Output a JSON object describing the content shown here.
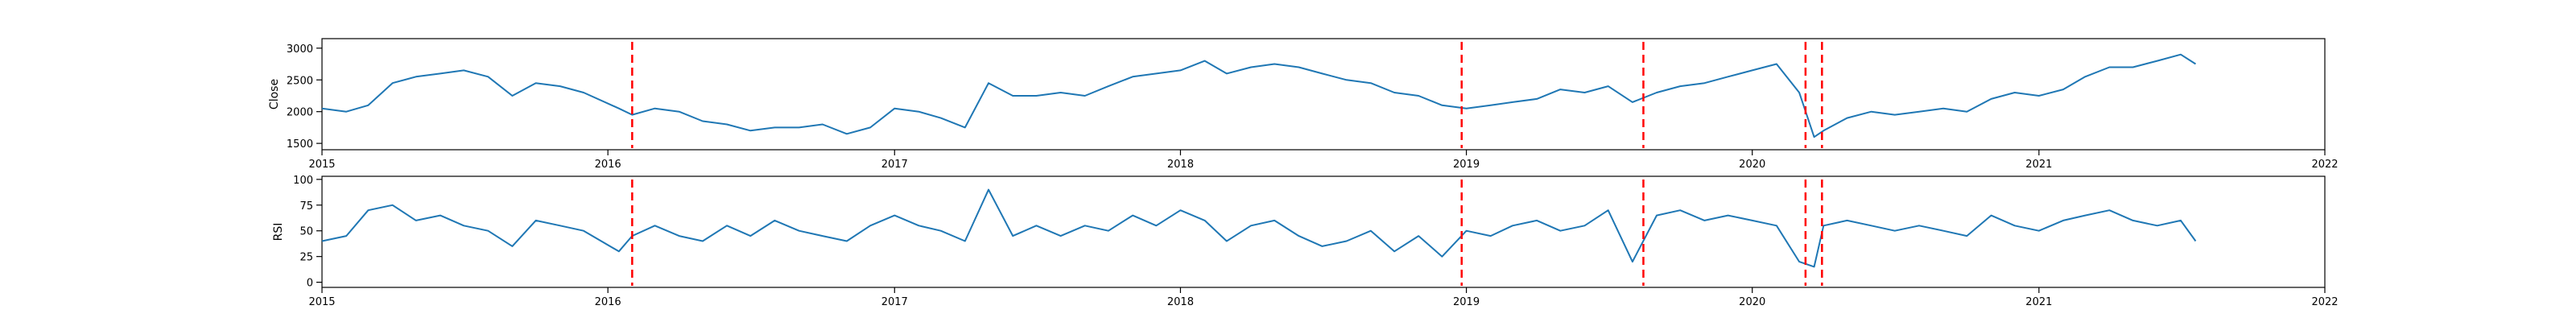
{
  "chart_data": [
    {
      "type": "line",
      "ylabel": "Close",
      "xticks": [
        "2015",
        "2016",
        "2017",
        "2018",
        "2019",
        "2020",
        "2021",
        "2022"
      ],
      "yticks": [
        1500,
        2000,
        2500,
        3000
      ],
      "xlim": [
        "2015-01-01",
        "2022-01-01"
      ],
      "ylim": [
        1400,
        3150
      ],
      "grid": false,
      "series_color": "#1f77b4",
      "series": [
        {
          "x": [
            "2015-01-01",
            "2015-02-01",
            "2015-03-01",
            "2015-04-01",
            "2015-05-01",
            "2015-06-01",
            "2015-07-01",
            "2015-08-01",
            "2015-09-01",
            "2015-10-01",
            "2015-11-01",
            "2015-12-01",
            "2016-01-15",
            "2016-02-01",
            "2016-03-01",
            "2016-04-01",
            "2016-05-01",
            "2016-06-01",
            "2016-07-01",
            "2016-08-01",
            "2016-09-01",
            "2016-10-01",
            "2016-11-01",
            "2016-12-01",
            "2017-01-01",
            "2017-02-01",
            "2017-03-01",
            "2017-04-01",
            "2017-05-01",
            "2017-06-01",
            "2017-07-01",
            "2017-08-01",
            "2017-09-01",
            "2017-10-01",
            "2017-11-01",
            "2017-12-01",
            "2018-01-01",
            "2018-02-01",
            "2018-03-01",
            "2018-04-01",
            "2018-05-01",
            "2018-06-01",
            "2018-07-01",
            "2018-08-01",
            "2018-09-01",
            "2018-10-01",
            "2018-11-01",
            "2018-12-01",
            "2019-01-01",
            "2019-02-01",
            "2019-03-01",
            "2019-04-01",
            "2019-05-01",
            "2019-06-01",
            "2019-07-01",
            "2019-08-01",
            "2019-09-01",
            "2019-10-01",
            "2019-11-01",
            "2019-12-01",
            "2020-01-01",
            "2020-02-01",
            "2020-03-01",
            "2020-03-20",
            "2020-04-01",
            "2020-05-01",
            "2020-06-01",
            "2020-07-01",
            "2020-08-01",
            "2020-09-01",
            "2020-10-01",
            "2020-11-01",
            "2020-12-01",
            "2021-01-01",
            "2021-02-01",
            "2021-03-01",
            "2021-04-01",
            "2021-05-01",
            "2021-06-01",
            "2021-07-01",
            "2021-07-20"
          ],
          "y": [
            2050,
            2000,
            2100,
            2450,
            2550,
            2600,
            2650,
            2550,
            2250,
            2450,
            2400,
            2300,
            2050,
            1950,
            2050,
            2000,
            1850,
            1800,
            1700,
            1750,
            1750,
            1800,
            1650,
            1750,
            2050,
            2000,
            1900,
            1750,
            2450,
            2250,
            2250,
            2300,
            2250,
            2400,
            2550,
            2600,
            2650,
            2800,
            2600,
            2700,
            2750,
            2700,
            2600,
            2500,
            2450,
            2300,
            2250,
            2100,
            2050,
            2100,
            2150,
            2200,
            2350,
            2300,
            2400,
            2150,
            2300,
            2400,
            2450,
            2550,
            2650,
            2750,
            2300,
            1600,
            1700,
            1900,
            2000,
            1950,
            2000,
            2050,
            2000,
            2200,
            2300,
            2250,
            2350,
            2550,
            2700,
            2700,
            2800,
            2900,
            2750
          ]
        }
      ],
      "vlines": [
        "2016-02-01",
        "2018-12-26",
        "2019-08-15",
        "2020-03-09",
        "2020-03-30"
      ],
      "vline_color": "#ff0000"
    },
    {
      "type": "line",
      "ylabel": "RSI",
      "xticks": [
        "2015",
        "2016",
        "2017",
        "2018",
        "2019",
        "2020",
        "2021",
        "2022"
      ],
      "yticks": [
        0,
        25,
        50,
        75,
        100
      ],
      "xlim": [
        "2015-01-01",
        "2022-01-01"
      ],
      "ylim": [
        -5,
        103
      ],
      "grid": false,
      "series_color": "#1f77b4",
      "series": [
        {
          "x": [
            "2015-01-01",
            "2015-02-01",
            "2015-03-01",
            "2015-04-01",
            "2015-05-01",
            "2015-06-01",
            "2015-07-01",
            "2015-08-01",
            "2015-09-01",
            "2015-10-01",
            "2015-11-01",
            "2015-12-01",
            "2016-01-15",
            "2016-02-01",
            "2016-03-01",
            "2016-04-01",
            "2016-05-01",
            "2016-06-01",
            "2016-07-01",
            "2016-08-01",
            "2016-09-01",
            "2016-10-01",
            "2016-11-01",
            "2016-12-01",
            "2017-01-01",
            "2017-02-01",
            "2017-03-01",
            "2017-04-01",
            "2017-05-01",
            "2017-06-01",
            "2017-07-01",
            "2017-08-01",
            "2017-09-01",
            "2017-10-01",
            "2017-11-01",
            "2017-12-01",
            "2018-01-01",
            "2018-02-01",
            "2018-03-01",
            "2018-04-01",
            "2018-05-01",
            "2018-06-01",
            "2018-07-01",
            "2018-08-01",
            "2018-09-01",
            "2018-10-01",
            "2018-11-01",
            "2018-12-01",
            "2019-01-01",
            "2019-02-01",
            "2019-03-01",
            "2019-04-01",
            "2019-05-01",
            "2019-06-01",
            "2019-07-01",
            "2019-08-01",
            "2019-09-01",
            "2019-10-01",
            "2019-11-01",
            "2019-12-01",
            "2020-01-01",
            "2020-02-01",
            "2020-03-01",
            "2020-03-20",
            "2020-04-01",
            "2020-05-01",
            "2020-06-01",
            "2020-07-01",
            "2020-08-01",
            "2020-09-01",
            "2020-10-01",
            "2020-11-01",
            "2020-12-01",
            "2021-01-01",
            "2021-02-01",
            "2021-03-01",
            "2021-04-01",
            "2021-05-01",
            "2021-06-01",
            "2021-07-01",
            "2021-07-20"
          ],
          "y": [
            40,
            45,
            70,
            75,
            60,
            65,
            55,
            50,
            35,
            60,
            55,
            50,
            30,
            45,
            55,
            45,
            40,
            55,
            45,
            60,
            50,
            45,
            40,
            55,
            65,
            55,
            50,
            40,
            90,
            45,
            55,
            45,
            55,
            50,
            65,
            55,
            70,
            60,
            40,
            55,
            60,
            45,
            35,
            40,
            50,
            30,
            45,
            25,
            50,
            45,
            55,
            60,
            50,
            55,
            70,
            20,
            65,
            70,
            60,
            65,
            60,
            55,
            20,
            15,
            55,
            60,
            55,
            50,
            55,
            50,
            45,
            65,
            55,
            50,
            60,
            65,
            70,
            60,
            55,
            60,
            40
          ]
        }
      ],
      "vlines": [
        "2016-02-01",
        "2018-12-26",
        "2019-08-15",
        "2020-03-09",
        "2020-03-30"
      ],
      "vline_color": "#ff0000"
    }
  ]
}
